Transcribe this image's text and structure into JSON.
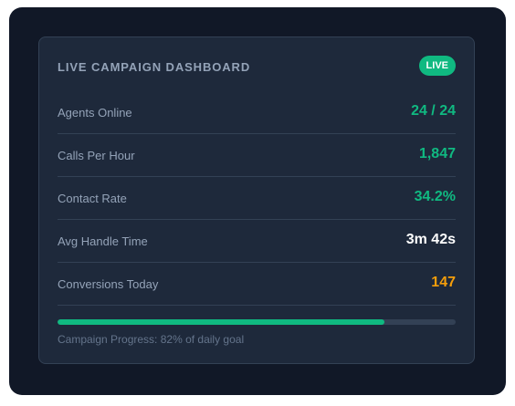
{
  "dashboard": {
    "title": "LIVE CAMPAIGN DASHBOARD",
    "badge": "LIVE",
    "metrics": [
      {
        "label": "Agents Online",
        "value": "24 / 24",
        "color": "#10b981"
      },
      {
        "label": "Calls Per Hour",
        "value": "1,847",
        "color": "#10b981"
      },
      {
        "label": "Contact Rate",
        "value": "34.2%",
        "color": "#10b981"
      },
      {
        "label": "Avg Handle Time",
        "value": "3m 42s",
        "color": "#ffffff"
      },
      {
        "label": "Conversions Today",
        "value": "147",
        "color": "#f59e0b"
      }
    ],
    "progress": {
      "fraction": 0.82,
      "caption": "Campaign Progress: 82% of daily goal"
    }
  },
  "colors": {
    "background": "#111827",
    "card": "#1e293b",
    "accent": "#10b981",
    "warning": "#f59e0b"
  }
}
